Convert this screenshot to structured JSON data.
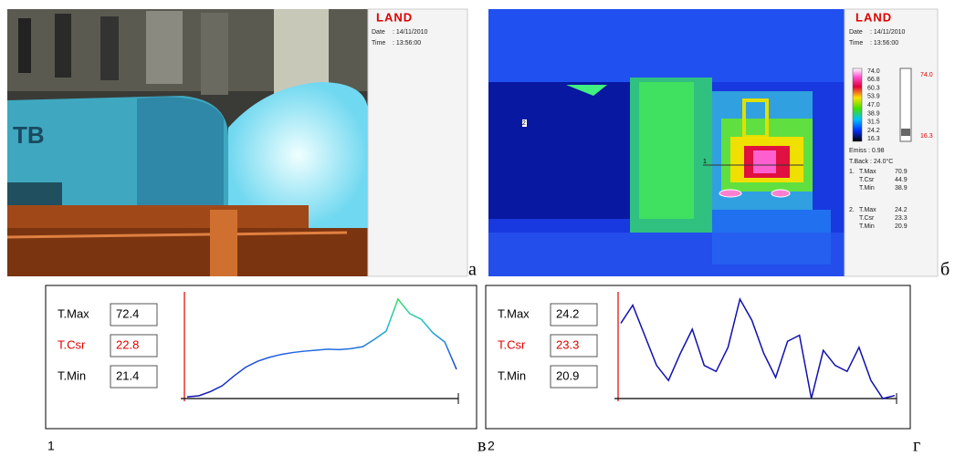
{
  "panel_a": {
    "logo": "LAND",
    "date_label": "Date",
    "date": ": 14/11/2010",
    "time_label": "Time",
    "time": ": 13:56:00",
    "letter": "а"
  },
  "panel_b": {
    "logo": "LAND",
    "date_label": "Date",
    "date": ": 14/11/2010",
    "time_label": "Time",
    "time": ": 13:56:00",
    "scale": [
      "74.0",
      "66.8",
      "60.3",
      "53.9",
      "47.0",
      "38.9",
      "31.5",
      "24.2",
      "16.3"
    ],
    "range_max": "74.0",
    "range_min": "16.3",
    "emiss": "Emiss   : 0.98",
    "tback": "T.Back  : 24.0°C",
    "spots": [
      {
        "number": "1.",
        "rows": [
          {
            "label": "T.Max",
            "value": "70.9"
          },
          {
            "label": "T.Csr",
            "value": "44.9"
          },
          {
            "label": "T.Min",
            "value": "38.9"
          }
        ]
      },
      {
        "number": "2.",
        "rows": [
          {
            "label": "T.Max",
            "value": "24.2"
          },
          {
            "label": "T.Csr",
            "value": "23.3"
          },
          {
            "label": "T.Min",
            "value": "20.9"
          }
        ]
      }
    ],
    "markers": [
      "1",
      "2"
    ],
    "letter": "б"
  },
  "profiles": [
    {
      "number": "1",
      "letter": "в",
      "stats": [
        {
          "label": "T.Max",
          "value": 72.4
        },
        {
          "label": "T.Csr",
          "value": 22.8
        },
        {
          "label": "T.Min",
          "value": 21.4
        }
      ],
      "values": [
        22.3,
        22.8,
        25.0,
        28.0,
        33.0,
        37.5,
        40.5,
        42.5,
        44.0,
        45.0,
        45.7,
        46.2,
        46.7,
        46.5,
        47.0,
        48.0,
        51.8,
        56.0,
        72.4,
        65.0,
        62.0,
        55.0,
        50.4,
        36.4
      ]
    },
    {
      "number": "2",
      "letter": "г",
      "stats": [
        {
          "label": "T.Max",
          "value": 24.2
        },
        {
          "label": "T.Csr",
          "value": 23.3
        },
        {
          "label": "T.Min",
          "value": 20.9
        }
      ],
      "values": [
        23.4,
        24.0,
        23.0,
        22.0,
        21.5,
        22.4,
        23.2,
        22.0,
        21.8,
        22.6,
        24.2,
        23.5,
        22.4,
        21.6,
        22.8,
        23.0,
        20.9,
        22.5,
        22.0,
        21.8,
        22.6,
        21.5,
        20.9,
        21.0
      ]
    }
  ]
}
